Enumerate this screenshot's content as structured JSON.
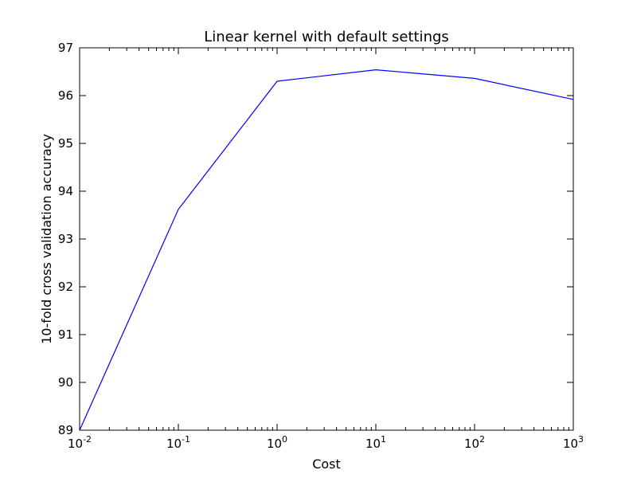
{
  "chart_data": {
    "type": "line",
    "title": "Linear kernel with default settings",
    "xlabel": "Cost",
    "ylabel": "10-fold cross validation accuracy",
    "xscale": "log",
    "xlim": [
      0.01,
      1000
    ],
    "ylim": [
      89,
      97
    ],
    "grid": false,
    "xticks": [
      {
        "base": "10",
        "exp": "-2"
      },
      {
        "base": "10",
        "exp": "-1"
      },
      {
        "base": "10",
        "exp": "0"
      },
      {
        "base": "10",
        "exp": "1"
      },
      {
        "base": "10",
        "exp": "2"
      },
      {
        "base": "10",
        "exp": "3"
      }
    ],
    "yticks": [
      "89",
      "90",
      "91",
      "92",
      "93",
      "94",
      "95",
      "96",
      "97"
    ],
    "series": [
      {
        "color": "#0000ff",
        "x": [
          0.01,
          0.1,
          1,
          10,
          100,
          1000
        ],
        "y": [
          89.0,
          93.62,
          96.3,
          96.54,
          96.36,
          95.92
        ]
      }
    ]
  }
}
